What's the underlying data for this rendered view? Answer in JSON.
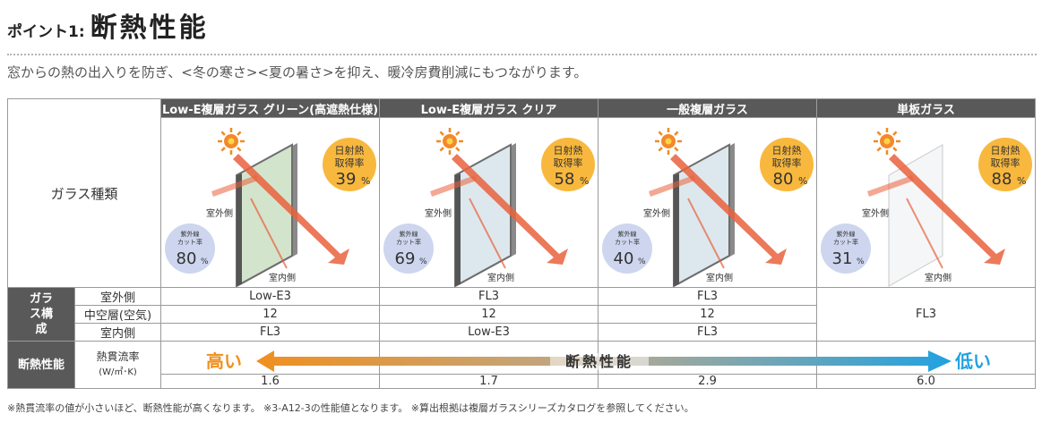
{
  "heading": {
    "label": "ポイント1:",
    "title": "断熱性能"
  },
  "intro": "窓からの熱の出入りを防ぎ、<冬の寒さ><夏の暑さ>を抑え、暖冷房費削減にもつながります。",
  "columns": [
    {
      "name": "Low-E複層ガラス グリーン(高遮熱仕様)",
      "solar": "39",
      "uv": "80",
      "outer": "Low-E3",
      "middle": "12",
      "inner": "FL3",
      "u_value": "1.6",
      "glass_color": "#d3e4cc"
    },
    {
      "name": "Low-E複層ガラス クリア",
      "solar": "58",
      "uv": "69",
      "outer": "FL3",
      "middle": "12",
      "inner": "Low-E3",
      "u_value": "1.7",
      "glass_color": "#dde8ee"
    },
    {
      "name": "一般複層ガラス",
      "solar": "80",
      "uv": "40",
      "outer": "FL3",
      "middle": "12",
      "inner": "FL3",
      "u_value": "2.9",
      "glass_color": "#dde8ee"
    },
    {
      "name": "単板ガラス",
      "solar": "88",
      "uv": "31",
      "single": "FL3",
      "u_value": "6.0",
      "glass_color": "#f4f6f7"
    }
  ],
  "labels": {
    "glass_type": "ガラス種類",
    "glass_config": "ガラス構成",
    "outdoor": "室外側",
    "middle_layer": "中空層(空気)",
    "indoor": "室内側",
    "insulation": "断熱性能",
    "u_value": "熱貫流率",
    "u_unit": "(W/㎡･K)",
    "solar_badge": [
      "日射熱",
      "取得率"
    ],
    "uv_badge": [
      "紫外線",
      "カット率"
    ],
    "percent": "%",
    "outside_side": "室外側",
    "inside_side": "室内側"
  },
  "performance": {
    "high": "高い",
    "low": "低い",
    "label": "断熱性能"
  },
  "footnote": "※熱貫流率の値が小さいほど、断熱性能が高くなります。 ※3-A12-3の性能値となります。 ※算出根拠は複層ガラスシリーズカタログを参照してください。",
  "colors": {
    "header_bg": "#595959",
    "badge_orange": "#f8b83e",
    "badge_uv": "#cdd6ee",
    "arrow_left": "#f0901f",
    "arrow_right": "#21a2e0",
    "ray": "#e9613d"
  }
}
